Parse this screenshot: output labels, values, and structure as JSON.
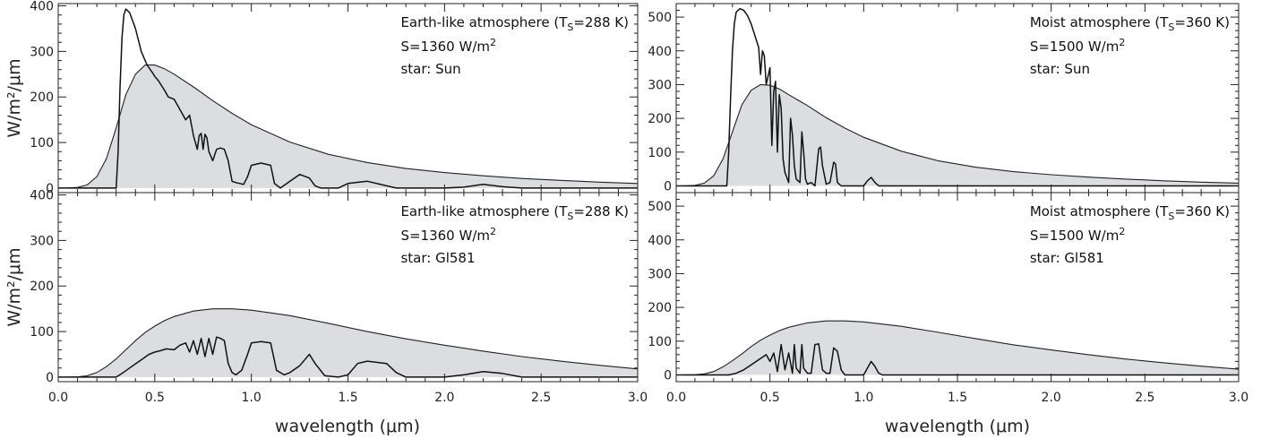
{
  "figure": {
    "xlabel": "wavelength (μm)"
  },
  "chart_data": [
    {
      "type": "line",
      "panel": "top-left",
      "ylabel": "W/m²/μm",
      "annotation_lines": [
        "Earth-like atmosphere (T",
        "S",
        "=288 K)",
        "S=1360 W/m",
        "2",
        "star: Sun"
      ],
      "xlim": [
        0,
        3
      ],
      "ylim": [
        -10,
        405
      ],
      "xticks": [
        "0.0",
        "0.5",
        "1.0",
        "1.5",
        "2.0",
        "2.5",
        "3.0"
      ],
      "yticks": [
        "0",
        "100",
        "200",
        "300",
        "400"
      ],
      "series": [
        {
          "kind": "area",
          "x": [
            0,
            0.05,
            0.1,
            0.15,
            0.2,
            0.25,
            0.3,
            0.35,
            0.4,
            0.45,
            0.5,
            0.55,
            0.6,
            0.7,
            0.8,
            0.9,
            1.0,
            1.2,
            1.4,
            1.6,
            1.8,
            2.0,
            2.2,
            2.4,
            2.6,
            2.8,
            3.0
          ],
          "y": [
            0,
            0.2,
            1.5,
            7,
            25,
            65,
            132,
            205,
            250,
            270,
            270,
            262,
            250,
            222,
            192,
            164,
            139,
            101,
            74,
            56,
            43,
            34,
            27,
            21,
            17,
            13,
            10
          ]
        },
        {
          "kind": "line",
          "x": [
            0.3,
            0.31,
            0.32,
            0.33,
            0.34,
            0.35,
            0.37,
            0.4,
            0.43,
            0.46,
            0.49,
            0.5,
            0.52,
            0.55,
            0.57,
            0.6,
            0.62,
            0.64,
            0.66,
            0.68,
            0.7,
            0.72,
            0.73,
            0.74,
            0.75,
            0.76,
            0.77,
            0.78,
            0.79,
            0.8,
            0.82,
            0.84,
            0.86,
            0.88,
            0.9,
            0.92,
            0.94,
            0.96,
            0.98,
            1.0,
            1.05,
            1.1,
            1.12,
            1.15,
            1.2,
            1.25,
            1.3,
            1.33,
            1.36,
            1.4,
            1.45,
            1.5,
            1.6,
            1.7,
            1.75,
            1.8,
            1.9,
            2.0,
            2.1,
            2.2,
            2.3,
            2.4,
            2.5,
            2.6,
            2.7,
            2.8,
            3.0
          ],
          "y": [
            0,
            80,
            220,
            330,
            380,
            393,
            385,
            350,
            300,
            270,
            252,
            245,
            235,
            215,
            200,
            195,
            180,
            165,
            150,
            160,
            115,
            85,
            115,
            120,
            85,
            118,
            110,
            80,
            70,
            60,
            85,
            88,
            85,
            60,
            15,
            12,
            10,
            8,
            25,
            50,
            55,
            50,
            10,
            0,
            15,
            30,
            22,
            5,
            0,
            0,
            0,
            10,
            15,
            5,
            0,
            0,
            0,
            0,
            2,
            8,
            3,
            0,
            0,
            0,
            0,
            0,
            0
          ]
        }
      ]
    },
    {
      "type": "line",
      "panel": "bottom-left",
      "ylabel": "W/m²/μm",
      "annotation_lines": [
        "Earth-like atmosphere (T",
        "S",
        "=288 K)",
        "S=1360 W/m",
        "2",
        "star: Gl581"
      ],
      "xlim": [
        0,
        3
      ],
      "ylim": [
        -10,
        405
      ],
      "xticks": [
        "0.0",
        "0.5",
        "1.0",
        "1.5",
        "2.0",
        "2.5",
        "3.0"
      ],
      "yticks": [
        "0",
        "100",
        "200",
        "300",
        "400"
      ],
      "series": [
        {
          "kind": "area",
          "x": [
            0,
            0.05,
            0.1,
            0.15,
            0.2,
            0.25,
            0.3,
            0.35,
            0.4,
            0.45,
            0.5,
            0.55,
            0.6,
            0.7,
            0.8,
            0.9,
            1.0,
            1.2,
            1.4,
            1.6,
            1.8,
            2.0,
            2.2,
            2.4,
            2.6,
            2.8,
            3.0
          ],
          "y": [
            0,
            0.1,
            0.5,
            3,
            10,
            23,
            40,
            60,
            80,
            98,
            112,
            124,
            133,
            145,
            150,
            150,
            147,
            135,
            118,
            100,
            84,
            70,
            57,
            45,
            35,
            26,
            18
          ]
        },
        {
          "kind": "line",
          "x": [
            0.3,
            0.33,
            0.37,
            0.42,
            0.47,
            0.5,
            0.53,
            0.56,
            0.6,
            0.63,
            0.66,
            0.68,
            0.7,
            0.72,
            0.74,
            0.76,
            0.78,
            0.8,
            0.82,
            0.84,
            0.86,
            0.88,
            0.9,
            0.92,
            0.95,
            0.98,
            1.0,
            1.05,
            1.1,
            1.13,
            1.17,
            1.2,
            1.25,
            1.3,
            1.33,
            1.38,
            1.45,
            1.5,
            1.55,
            1.6,
            1.7,
            1.75,
            1.8,
            1.9,
            2.0,
            2.1,
            2.2,
            2.3,
            2.4,
            2.5,
            2.7,
            3.0
          ],
          "y": [
            0,
            8,
            20,
            35,
            50,
            55,
            58,
            62,
            60,
            70,
            75,
            55,
            80,
            50,
            85,
            45,
            85,
            50,
            88,
            85,
            80,
            30,
            10,
            5,
            15,
            50,
            75,
            78,
            75,
            15,
            5,
            10,
            25,
            50,
            30,
            3,
            0,
            5,
            30,
            35,
            30,
            10,
            0,
            0,
            0,
            5,
            12,
            8,
            0,
            0,
            0,
            0
          ]
        }
      ]
    },
    {
      "type": "line",
      "panel": "top-right",
      "ylabel": "",
      "annotation_lines": [
        "Moist atmosphere (T",
        "S",
        "=360 K)",
        "S=1500 W/m",
        "2",
        "star: Sun"
      ],
      "xlim": [
        0,
        3
      ],
      "ylim": [
        -20,
        540
      ],
      "xticks": [
        "0.0",
        "0.5",
        "1.0",
        "1.5",
        "2.0",
        "2.5",
        "3.0"
      ],
      "yticks": [
        "0",
        "100",
        "200",
        "300",
        "400",
        "500"
      ],
      "series": [
        {
          "kind": "area",
          "x": [
            0,
            0.05,
            0.1,
            0.15,
            0.2,
            0.25,
            0.3,
            0.35,
            0.4,
            0.45,
            0.5,
            0.55,
            0.6,
            0.7,
            0.8,
            0.9,
            1.0,
            1.2,
            1.4,
            1.6,
            1.8,
            2.0,
            2.2,
            2.4,
            2.6,
            2.8,
            3.0
          ],
          "y": [
            0,
            0.2,
            1.5,
            8,
            30,
            80,
            160,
            240,
            283,
            300,
            298,
            287,
            270,
            238,
            202,
            171,
            144,
            103,
            74,
            55,
            42,
            33,
            26,
            20,
            15,
            11,
            8
          ]
        },
        {
          "kind": "line",
          "x": [
            0.27,
            0.28,
            0.29,
            0.3,
            0.31,
            0.32,
            0.34,
            0.36,
            0.38,
            0.4,
            0.42,
            0.44,
            0.45,
            0.46,
            0.47,
            0.48,
            0.5,
            0.51,
            0.52,
            0.53,
            0.54,
            0.55,
            0.56,
            0.57,
            0.58,
            0.6,
            0.61,
            0.62,
            0.63,
            0.64,
            0.66,
            0.67,
            0.68,
            0.69,
            0.7,
            0.72,
            0.74,
            0.76,
            0.77,
            0.78,
            0.8,
            0.82,
            0.84,
            0.85,
            0.86,
            0.88,
            0.9,
            0.95,
            1.0,
            1.02,
            1.04,
            1.06,
            1.08,
            1.1,
            1.2,
            1.5,
            2.0,
            3.0
          ],
          "y": [
            0,
            100,
            260,
            400,
            480,
            515,
            525,
            520,
            505,
            480,
            445,
            410,
            330,
            400,
            385,
            300,
            350,
            120,
            280,
            310,
            100,
            270,
            230,
            80,
            40,
            10,
            200,
            150,
            60,
            20,
            10,
            160,
            100,
            20,
            5,
            10,
            0,
            110,
            115,
            60,
            5,
            10,
            70,
            65,
            10,
            0,
            0,
            0,
            0,
            15,
            25,
            10,
            0,
            0,
            0,
            0,
            0,
            0
          ]
        }
      ]
    },
    {
      "type": "line",
      "panel": "bottom-right",
      "ylabel": "",
      "annotation_lines": [
        "Moist atmosphere (T",
        "S",
        "=360 K)",
        "S=1500 W/m",
        "2",
        "star: Gl581"
      ],
      "xlim": [
        0,
        3
      ],
      "ylim": [
        -20,
        540
      ],
      "xticks": [
        "0.0",
        "0.5",
        "1.0",
        "1.5",
        "2.0",
        "2.5",
        "3.0"
      ],
      "yticks": [
        "0",
        "100",
        "200",
        "300",
        "400",
        "500"
      ],
      "series": [
        {
          "kind": "area",
          "x": [
            0,
            0.05,
            0.1,
            0.15,
            0.2,
            0.25,
            0.3,
            0.35,
            0.4,
            0.45,
            0.5,
            0.55,
            0.6,
            0.7,
            0.8,
            0.9,
            1.0,
            1.2,
            1.4,
            1.6,
            1.8,
            2.0,
            2.2,
            2.4,
            2.6,
            2.8,
            3.0
          ],
          "y": [
            0,
            0.1,
            0.5,
            3,
            10,
            24,
            42,
            62,
            84,
            103,
            118,
            131,
            141,
            154,
            160,
            160,
            157,
            144,
            126,
            107,
            89,
            74,
            60,
            47,
            36,
            26,
            17
          ]
        },
        {
          "kind": "line",
          "x": [
            0.28,
            0.32,
            0.36,
            0.4,
            0.44,
            0.48,
            0.5,
            0.52,
            0.54,
            0.56,
            0.58,
            0.6,
            0.62,
            0.63,
            0.64,
            0.66,
            0.67,
            0.68,
            0.7,
            0.72,
            0.74,
            0.76,
            0.78,
            0.8,
            0.82,
            0.84,
            0.86,
            0.88,
            0.9,
            0.95,
            1.0,
            1.02,
            1.04,
            1.06,
            1.08,
            1.1,
            1.2,
            1.5,
            2.0,
            3.0
          ],
          "y": [
            0,
            5,
            15,
            30,
            45,
            60,
            40,
            65,
            10,
            90,
            15,
            65,
            5,
            90,
            20,
            5,
            90,
            20,
            5,
            5,
            90,
            92,
            15,
            5,
            5,
            80,
            70,
            15,
            0,
            0,
            0,
            20,
            40,
            25,
            5,
            0,
            0,
            0,
            0,
            0
          ]
        }
      ]
    }
  ]
}
